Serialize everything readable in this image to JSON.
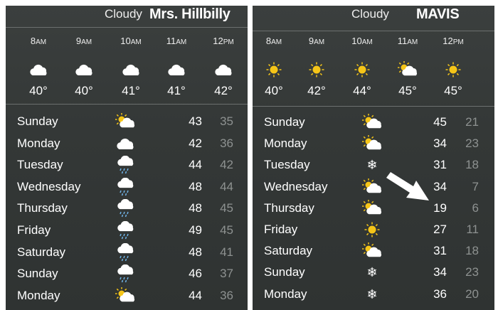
{
  "panels": [
    {
      "condition": "Cloudy",
      "label": "Mrs. Hillbilly",
      "hourly": [
        {
          "time": "8",
          "ampm": "AM",
          "icon": "cloud",
          "temp": "40°"
        },
        {
          "time": "9",
          "ampm": "AM",
          "icon": "cloud",
          "temp": "40°"
        },
        {
          "time": "10",
          "ampm": "AM",
          "icon": "cloud",
          "temp": "41°"
        },
        {
          "time": "11",
          "ampm": "AM",
          "icon": "cloud",
          "temp": "41°"
        },
        {
          "time": "12",
          "ampm": "PM",
          "icon": "cloud",
          "temp": "42°"
        }
      ],
      "daily": [
        {
          "day": "Sunday",
          "icon": "partly-sunny",
          "high": "43",
          "low": "35"
        },
        {
          "day": "Monday",
          "icon": "cloud",
          "high": "42",
          "low": "36"
        },
        {
          "day": "Tuesday",
          "icon": "rain",
          "high": "44",
          "low": "42"
        },
        {
          "day": "Wednesday",
          "icon": "rain",
          "high": "48",
          "low": "44"
        },
        {
          "day": "Thursday",
          "icon": "rain",
          "high": "48",
          "low": "45"
        },
        {
          "day": "Friday",
          "icon": "rain",
          "high": "49",
          "low": "45"
        },
        {
          "day": "Saturday",
          "icon": "rain",
          "high": "48",
          "low": "41"
        },
        {
          "day": "Sunday",
          "icon": "rain",
          "high": "46",
          "low": "37"
        },
        {
          "day": "Monday",
          "icon": "partly-sunny",
          "high": "44",
          "low": "36"
        }
      ]
    },
    {
      "condition": "Cloudy",
      "label": "MAVIS",
      "hourly": [
        {
          "time": "8",
          "ampm": "AM",
          "icon": "sun",
          "temp": "40°"
        },
        {
          "time": "9",
          "ampm": "AM",
          "icon": "sun",
          "temp": "42°"
        },
        {
          "time": "10",
          "ampm": "AM",
          "icon": "sun",
          "temp": "44°"
        },
        {
          "time": "11",
          "ampm": "AM",
          "icon": "partly-sunny",
          "temp": "45°"
        },
        {
          "time": "12",
          "ampm": "PM",
          "icon": "sun",
          "temp": "45°"
        }
      ],
      "daily": [
        {
          "day": "Sunday",
          "icon": "partly-sunny",
          "high": "45",
          "low": "21"
        },
        {
          "day": "Monday",
          "icon": "partly-sunny",
          "high": "34",
          "low": "23"
        },
        {
          "day": "Tuesday",
          "icon": "snow",
          "high": "31",
          "low": "18"
        },
        {
          "day": "Wednesday",
          "icon": "partly-sunny",
          "high": "34",
          "low": "7"
        },
        {
          "day": "Thursday",
          "icon": "partly-sunny",
          "high": "19",
          "low": "6"
        },
        {
          "day": "Friday",
          "icon": "sun",
          "high": "27",
          "low": "11"
        },
        {
          "day": "Saturday",
          "icon": "partly-sunny",
          "high": "31",
          "low": "18"
        },
        {
          "day": "Sunday",
          "icon": "snow",
          "high": "34",
          "low": "23"
        },
        {
          "day": "Monday",
          "icon": "snow",
          "high": "36",
          "low": "20"
        }
      ]
    }
  ]
}
